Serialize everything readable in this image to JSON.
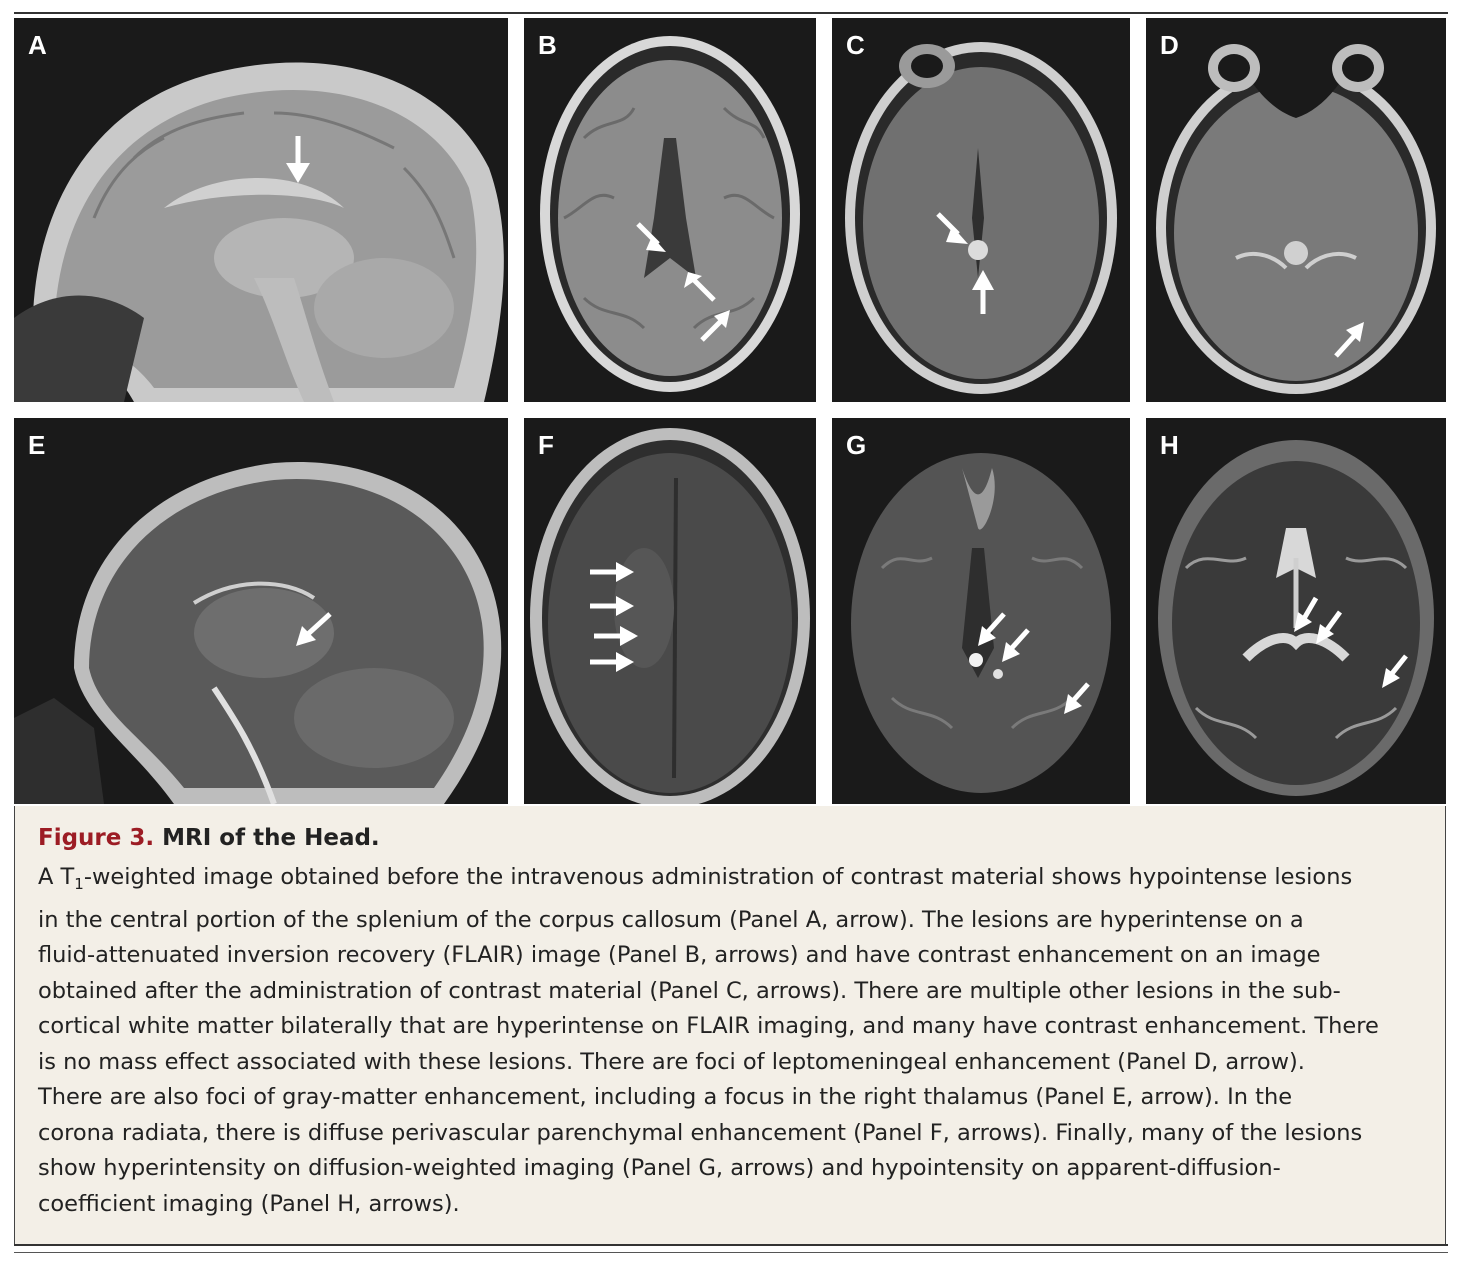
{
  "figure": {
    "number_label": "Figure 3.",
    "title": "MRI of the Head.",
    "caption_prefix": "A T",
    "caption_subscript": "1",
    "caption_first_rest": "-weighted image obtained before the intravenous administration of contrast material shows hypointense lesions",
    "caption_lines": [
      "in the central portion of the splenium of the corpus callosum (Panel A, arrow). The lesions are hyperintense on a",
      "fluid-attenuated inversion recovery (FLAIR) image (Panel B, arrows) and have contrast enhancement on an image",
      "obtained after the administration of contrast material (Panel C, arrows). There are multiple other lesions in the sub-",
      "cortical white matter bilaterally that are hyperintense on FLAIR imaging, and many have contrast enhancement. There",
      "is no mass effect associated with these lesions. There are foci of leptomeningeal enhancement (Panel D, arrow).",
      "There are also foci of gray-matter enhancement, including a focus in the right thalamus (Panel E, arrow). In the",
      "corona radiata, there is diffuse perivascular parenchymal enhancement (Panel F, arrows). Finally, many of the lesions",
      "show hyperintensity on diffusion-weighted imaging (Panel G, arrows) and hypointensity on apparent-diffusion-",
      "coefficient imaging (Panel H, arrows)."
    ]
  },
  "panels": [
    {
      "label": "A"
    },
    {
      "label": "B"
    },
    {
      "label": "C"
    },
    {
      "label": "D"
    },
    {
      "label": "E"
    },
    {
      "label": "F"
    },
    {
      "label": "G"
    },
    {
      "label": "H"
    }
  ],
  "colors": {
    "figure_number": "#9c1c24",
    "caption_background": "#f3efe7",
    "panel_background": "#151515"
  }
}
